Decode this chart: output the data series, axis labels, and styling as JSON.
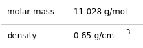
{
  "rows": [
    {
      "label": "molar mass",
      "value_base": "11.028 g/mol",
      "has_superscript": false,
      "sup": ""
    },
    {
      "label": "density",
      "value_base": "0.65 g/cm",
      "has_superscript": true,
      "sup": "3"
    }
  ],
  "background_color": "#ffffff",
  "border_color": "#c8c8c8",
  "text_color": "#000000",
  "col_split": 0.465,
  "label_fontsize": 8.5,
  "value_fontsize": 8.5,
  "sup_fontsize": 6.0
}
